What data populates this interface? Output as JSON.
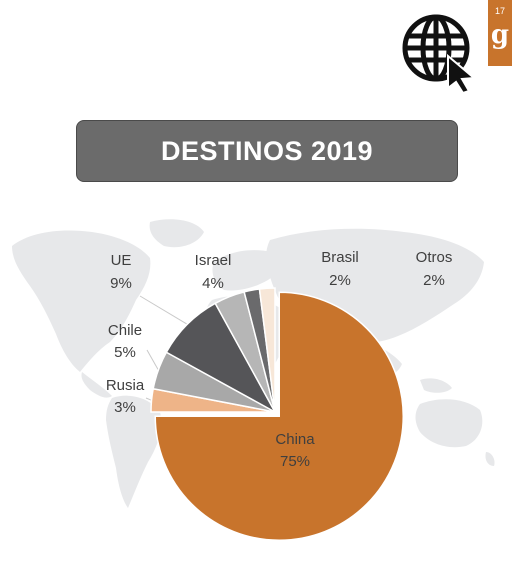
{
  "slide": {
    "number": "17",
    "logo_letter": "g"
  },
  "header": {
    "icon": "globe-cursor-icon"
  },
  "colors": {
    "accent": "#c8742c",
    "title_bg": "#6b6b6b",
    "map": "#e7e8ea"
  },
  "chart_data": {
    "type": "pie",
    "title": "DESTINOS 2019",
    "slices": [
      {
        "label": "China",
        "value": 75,
        "display": "75%",
        "color": "#c8742c"
      },
      {
        "label": "Rusia",
        "value": 3,
        "display": "3%",
        "color": "#eeb488"
      },
      {
        "label": "Chile",
        "value": 5,
        "display": "5%",
        "color": "#a8a8a8"
      },
      {
        "label": "UE",
        "value": 9,
        "display": "9%",
        "color": "#555558"
      },
      {
        "label": "Israel",
        "value": 4,
        "display": "4%",
        "color": "#b6b6b6"
      },
      {
        "label": "Brasil",
        "value": 2,
        "display": "2%",
        "color": "#6a6a6c"
      },
      {
        "label": "Otros",
        "value": 2,
        "display": "2%",
        "color": "#f7e7d8"
      }
    ],
    "legend": "none",
    "data_labels": "outside"
  }
}
